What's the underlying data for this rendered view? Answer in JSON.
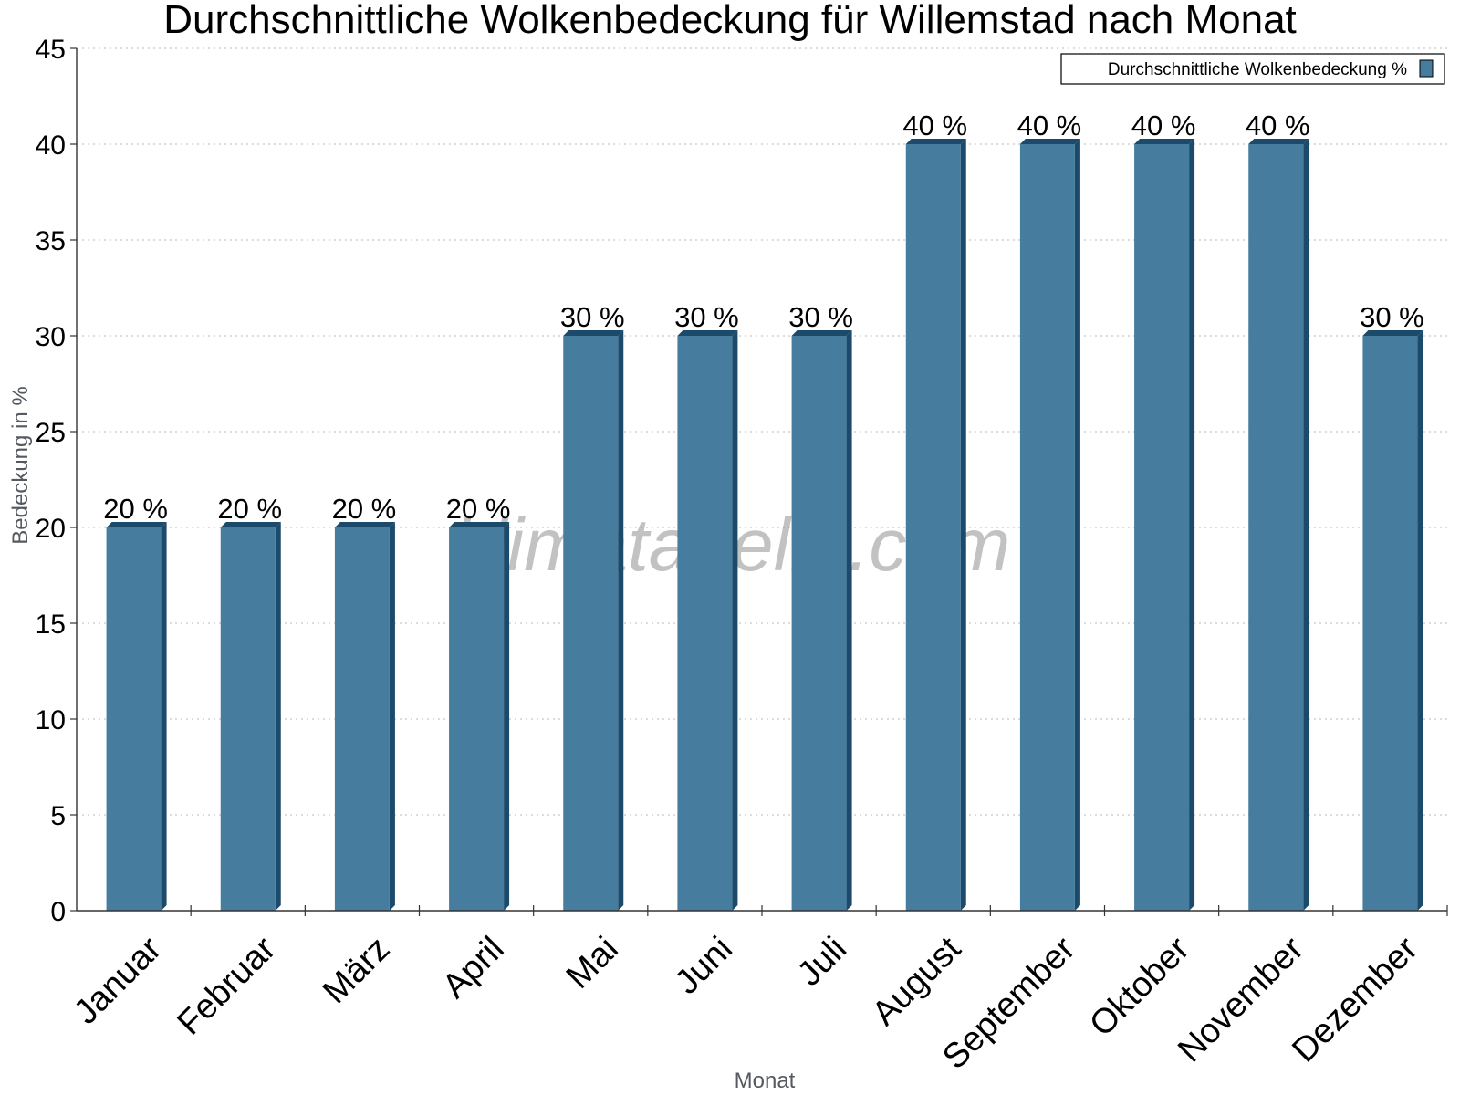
{
  "watermark": "klimatabelle.com",
  "colors": {
    "bar_face": "#467c9e",
    "bar_side": "#1c4a6a",
    "bar_top": "#1c4a6a",
    "grid": "#c8c8c8",
    "axis": "#333333"
  },
  "chart_data": {
    "type": "bar",
    "title": "Durchschnittliche Wolkenbedeckung für Willemstad nach Monat",
    "xlabel": "Monat",
    "ylabel": "Bedeckung in %",
    "ylim": [
      0,
      45
    ],
    "yticks": [
      "0",
      "5",
      "10",
      "15",
      "20",
      "25",
      "30",
      "35",
      "40",
      "45"
    ],
    "grid": true,
    "legend_position": "top-right",
    "categories": [
      "Januar",
      "Februar",
      "März",
      "April",
      "Mai",
      "Juni",
      "Juli",
      "August",
      "September",
      "Oktober",
      "November",
      "Dezember"
    ],
    "series": [
      {
        "name": "Durchschnittliche Wolkenbedeckung %",
        "values": [
          20,
          20,
          20,
          20,
          30,
          30,
          30,
          40,
          40,
          40,
          40,
          30
        ],
        "data_labels": [
          "20 %",
          "20 %",
          "20 %",
          "20 %",
          "30 %",
          "30 %",
          "30 %",
          "40 %",
          "40 %",
          "40 %",
          "40 %",
          "30 %"
        ]
      }
    ]
  }
}
